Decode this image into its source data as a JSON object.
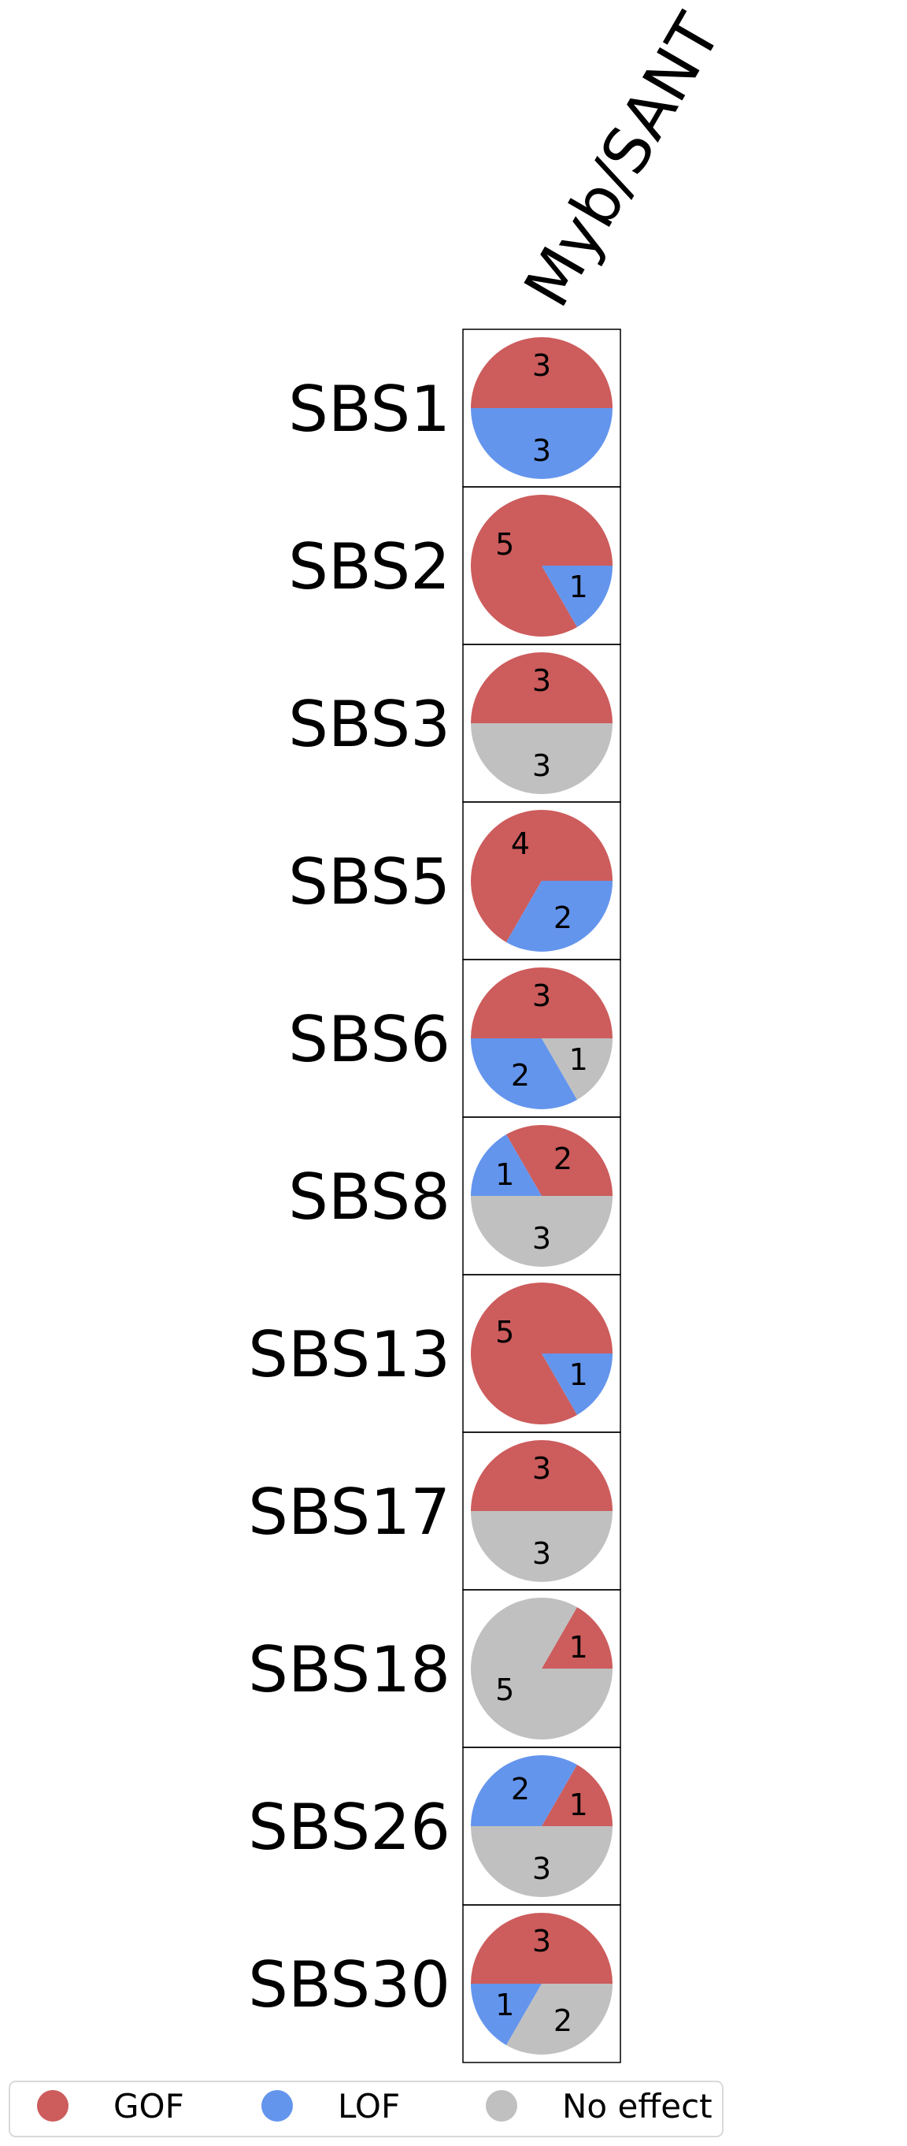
{
  "chart_data": {
    "type": "pie",
    "column_label": "Myb/SANT",
    "categories": [
      "GOF",
      "LOF",
      "No effect"
    ],
    "colors": {
      "GOF": "#cd5c5c",
      "LOF": "#6495ed",
      "No effect": "#c0c0c0"
    },
    "rows": [
      {
        "label": "SBS1",
        "values": {
          "GOF": 3,
          "LOF": 3,
          "No effect": 0
        }
      },
      {
        "label": "SBS2",
        "values": {
          "GOF": 5,
          "LOF": 1,
          "No effect": 0
        }
      },
      {
        "label": "SBS3",
        "values": {
          "GOF": 3,
          "LOF": 0,
          "No effect": 3
        }
      },
      {
        "label": "SBS5",
        "values": {
          "GOF": 4,
          "LOF": 2,
          "No effect": 0
        }
      },
      {
        "label": "SBS6",
        "values": {
          "GOF": 3,
          "LOF": 2,
          "No effect": 1
        }
      },
      {
        "label": "SBS8",
        "values": {
          "GOF": 2,
          "LOF": 1,
          "No effect": 3
        }
      },
      {
        "label": "SBS13",
        "values": {
          "GOF": 5,
          "LOF": 1,
          "No effect": 0
        }
      },
      {
        "label": "SBS17",
        "values": {
          "GOF": 3,
          "LOF": 0,
          "No effect": 3
        }
      },
      {
        "label": "SBS18",
        "values": {
          "GOF": 1,
          "LOF": 0,
          "No effect": 5
        }
      },
      {
        "label": "SBS26",
        "values": {
          "GOF": 1,
          "LOF": 2,
          "No effect": 3
        }
      },
      {
        "label": "SBS30",
        "values": {
          "GOF": 3,
          "LOF": 1,
          "No effect": 2
        }
      }
    ],
    "legend": {
      "placement": "bottom",
      "entries": [
        "GOF",
        "LOF",
        "No effect"
      ]
    }
  }
}
